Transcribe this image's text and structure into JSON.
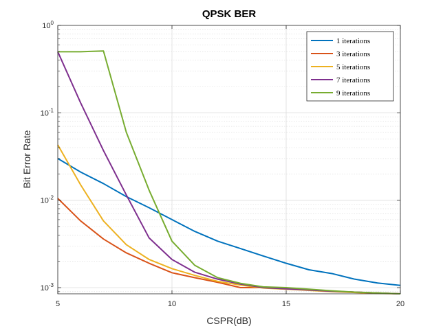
{
  "chart_data": {
    "type": "line",
    "title": "QPSK BER",
    "xlabel": "CSPR(dB)",
    "ylabel": "Bit Error Rate",
    "xlim": [
      5,
      20
    ],
    "ylim": [
      0.00085,
      1
    ],
    "yscale": "log",
    "grid": true,
    "minor_grid": true,
    "legend_position": "top-right",
    "x_ticks": [
      5,
      10,
      15,
      20
    ],
    "x_tick_labels": [
      "5",
      "10",
      "15",
      "20"
    ],
    "y_ticks": [
      0.001,
      0.01,
      0.1,
      1
    ],
    "y_tick_labels": [
      {
        "base": "10",
        "exp": "-3"
      },
      {
        "base": "10",
        "exp": "-2"
      },
      {
        "base": "10",
        "exp": "-1"
      },
      {
        "base": "10",
        "exp": "0"
      }
    ],
    "x": [
      5,
      6,
      7,
      8,
      9,
      10,
      11,
      12,
      13,
      14,
      15,
      16,
      17,
      18,
      19,
      20
    ],
    "series": [
      {
        "name": "1 iterations",
        "color": "#0072BD",
        "values": [
          0.03,
          0.021,
          0.0155,
          0.011,
          0.0082,
          0.006,
          0.0044,
          0.0034,
          0.0028,
          0.0023,
          0.0019,
          0.0016,
          0.00145,
          0.00125,
          0.00113,
          0.00106
        ]
      },
      {
        "name": "3 iterations",
        "color": "#D95319",
        "values": [
          0.0105,
          0.0058,
          0.0036,
          0.0025,
          0.0019,
          0.00148,
          0.0013,
          0.00115,
          0.001,
          0.001,
          0.00096,
          0.00094,
          0.00091,
          0.00089,
          0.00087,
          0.00085
        ]
      },
      {
        "name": "5 iterations",
        "color": "#EDB120",
        "values": [
          0.043,
          0.015,
          0.0058,
          0.0031,
          0.0021,
          0.00165,
          0.00138,
          0.00118,
          0.00107,
          0.00099,
          0.00096,
          0.00093,
          0.0009,
          0.00088,
          0.00086,
          0.00085
        ]
      },
      {
        "name": "7 iterations",
        "color": "#7E2F8E",
        "values": [
          0.5,
          0.13,
          0.037,
          0.0115,
          0.0037,
          0.0021,
          0.0015,
          0.00125,
          0.0011,
          0.001,
          0.00097,
          0.00094,
          0.00091,
          0.00089,
          0.00087,
          0.00085
        ]
      },
      {
        "name": "9 iterations",
        "color": "#77AC30",
        "values": [
          0.5,
          0.5,
          0.51,
          0.06,
          0.013,
          0.0034,
          0.0018,
          0.0013,
          0.00112,
          0.00102,
          0.001,
          0.00096,
          0.00092,
          0.00089,
          0.00087,
          0.00085
        ]
      }
    ]
  }
}
